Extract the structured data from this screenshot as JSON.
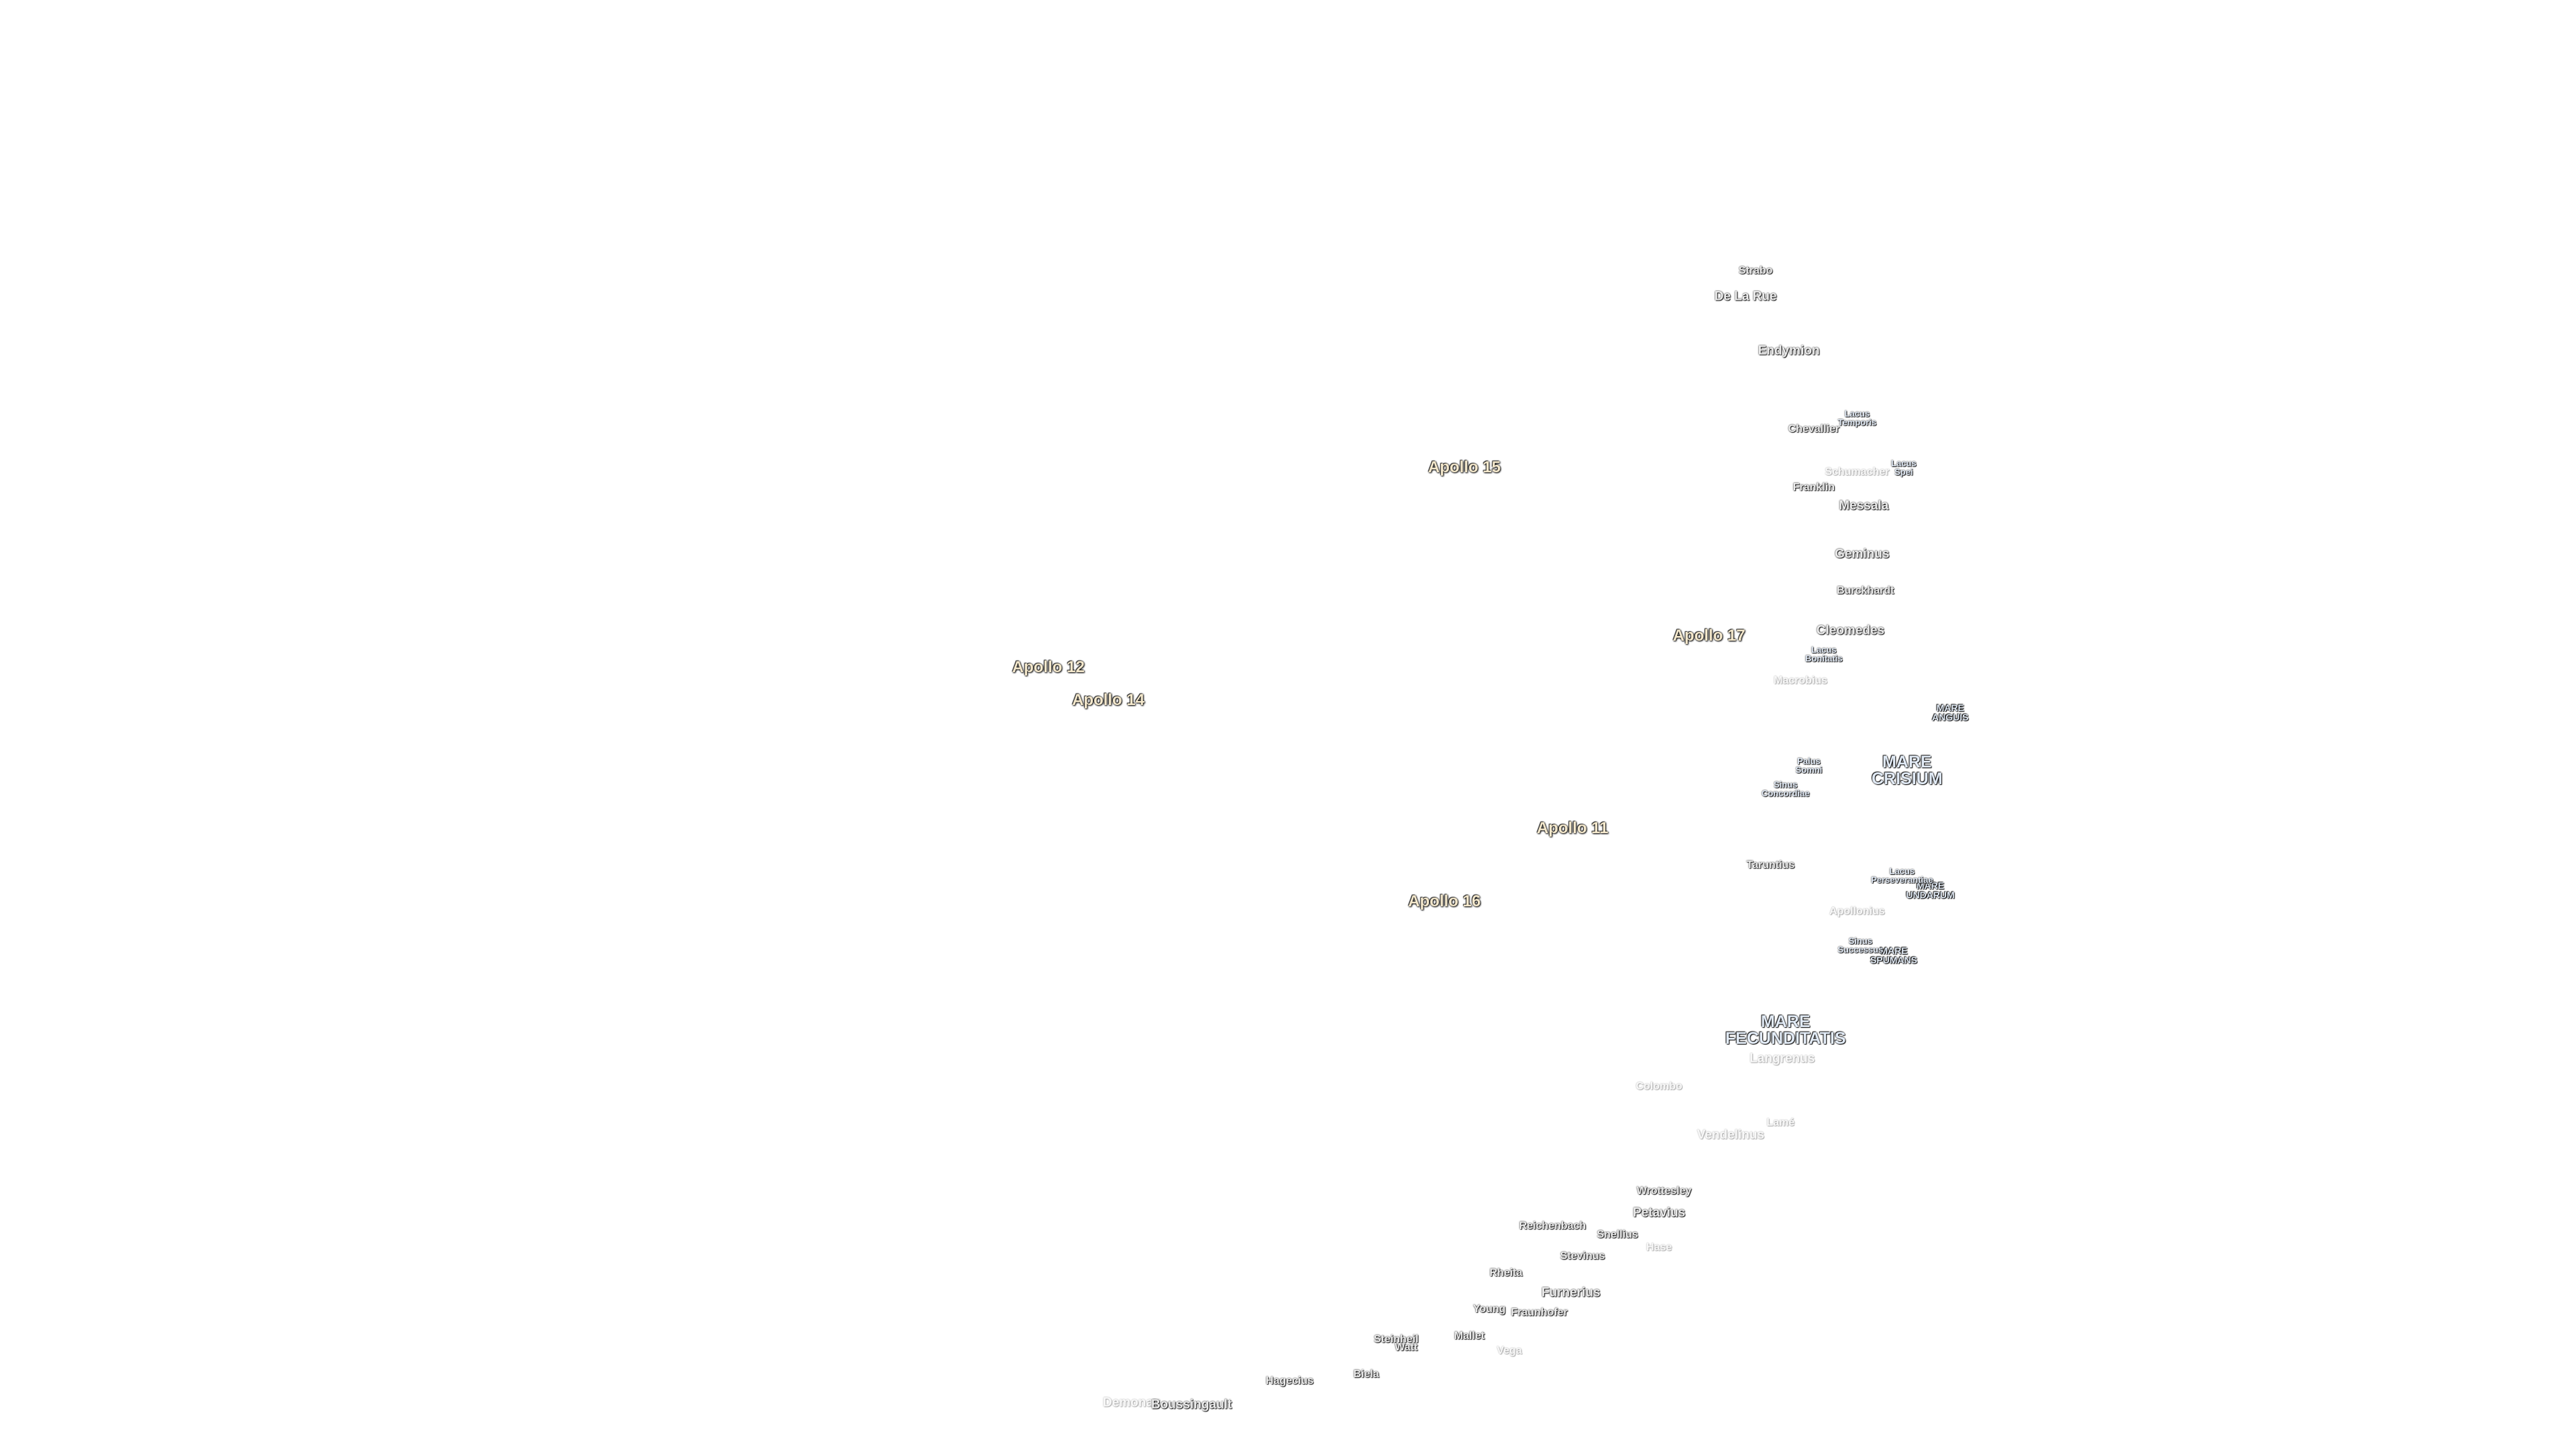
{
  "labels": {
    "apollo": [
      "Apollo 15",
      "Apollo 17",
      "Apollo 12",
      "Apollo 14",
      "Apollo 11",
      "Apollo 16"
    ],
    "maria": [
      "MARE CRISIUM",
      "MARE FECUNDITATIS",
      "MARE ANGUIS",
      "MARE UNDARUM",
      "MARE SPUMANS"
    ],
    "lakes": [
      "Lacus Temporis",
      "Lacus Spei",
      "Lacus Bonitatis",
      "Palus Somni",
      "Sinus Concordiae",
      "Lacus Perseverantiae",
      "Sinus Successus"
    ],
    "craters": [
      "Strabo",
      "De La Rue",
      "Endymion",
      "Chevallier",
      "Schumacher",
      "Franklin",
      "Messala",
      "Geminus",
      "Burckhardt",
      "Cleomedes",
      "Macrobius",
      "Taruntius",
      "Apollonius",
      "Langrenus",
      "Colombo",
      "Lamé",
      "Vendelinus",
      "Wrottesley",
      "Petavius",
      "Reichenbach",
      "Snellius",
      "Hase",
      "Stevinus",
      "Rheita",
      "Furnerius",
      "Young",
      "Fraunhofer",
      "Mallet",
      "Steinheil",
      "Watt",
      "Vega",
      "Hagecius",
      "Biela",
      "Demonax",
      "Boussingault"
    ]
  }
}
